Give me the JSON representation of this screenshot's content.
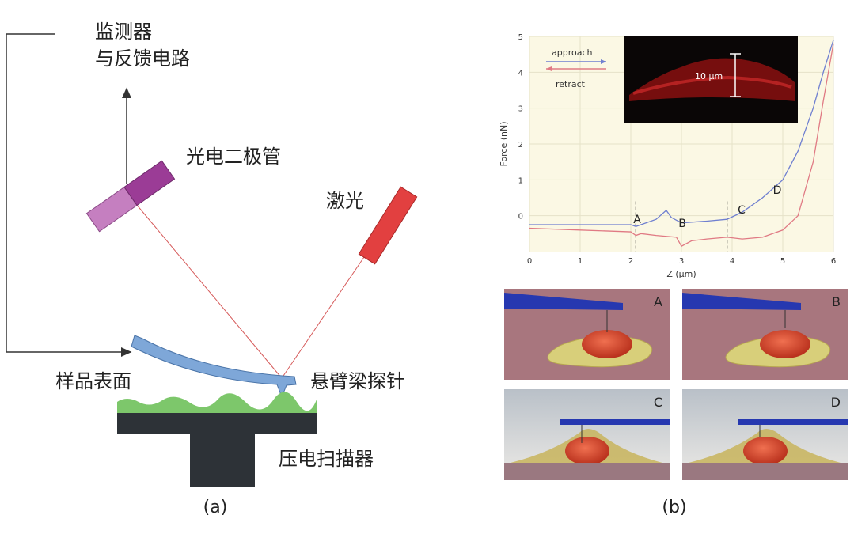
{
  "diagram": {
    "labels": [
      "监测器",
      "与反馈电路",
      "光电二极管",
      "激光",
      "样品表面",
      "悬臂梁探针",
      "压电扫描器"
    ],
    "caption": "(a)"
  },
  "chart_data": {
    "type": "line",
    "y_label": "Force (nN)",
    "x_label": "Z (μm)",
    "xlim": [
      0,
      6
    ],
    "ylim": [
      -1,
      5
    ],
    "xticks": [
      0,
      1,
      2,
      3,
      4,
      5,
      6
    ],
    "yticks": [
      0,
      1,
      2,
      3,
      4,
      5
    ],
    "grid": true,
    "series": [
      {
        "name": "approach",
        "color": "#6f7fd0",
        "x": [
          0,
          1,
          2,
          2.1,
          2.5,
          2.7,
          2.8,
          3,
          3.5,
          3.9,
          4.2,
          4.6,
          5,
          5.3,
          5.6,
          5.8,
          6
        ],
        "values": [
          -0.25,
          -0.25,
          -0.25,
          -0.3,
          -0.1,
          0.15,
          -0.05,
          -0.2,
          -0.15,
          -0.1,
          0.1,
          0.5,
          1.0,
          1.8,
          3.0,
          4.0,
          4.9
        ]
      },
      {
        "name": "retract",
        "color": "#e07a84",
        "x": [
          0,
          1,
          2,
          2.1,
          2.2,
          2.5,
          2.9,
          3,
          3.2,
          3.5,
          3.9,
          4.2,
          4.6,
          5,
          5.3,
          5.6,
          5.8,
          6
        ],
        "values": [
          -0.35,
          -0.4,
          -0.45,
          -0.55,
          -0.5,
          -0.55,
          -0.6,
          -0.85,
          -0.7,
          -0.65,
          -0.6,
          -0.65,
          -0.6,
          -0.4,
          0,
          1.5,
          3.2,
          4.8
        ]
      }
    ],
    "vlines": [
      2.1,
      3.9
    ],
    "annotations": [
      "A",
      "B",
      "C",
      "D"
    ],
    "inset_label": "10 μm"
  },
  "panels": {
    "labels": [
      "A",
      "B",
      "C",
      "D"
    ],
    "caption": "(b)"
  }
}
